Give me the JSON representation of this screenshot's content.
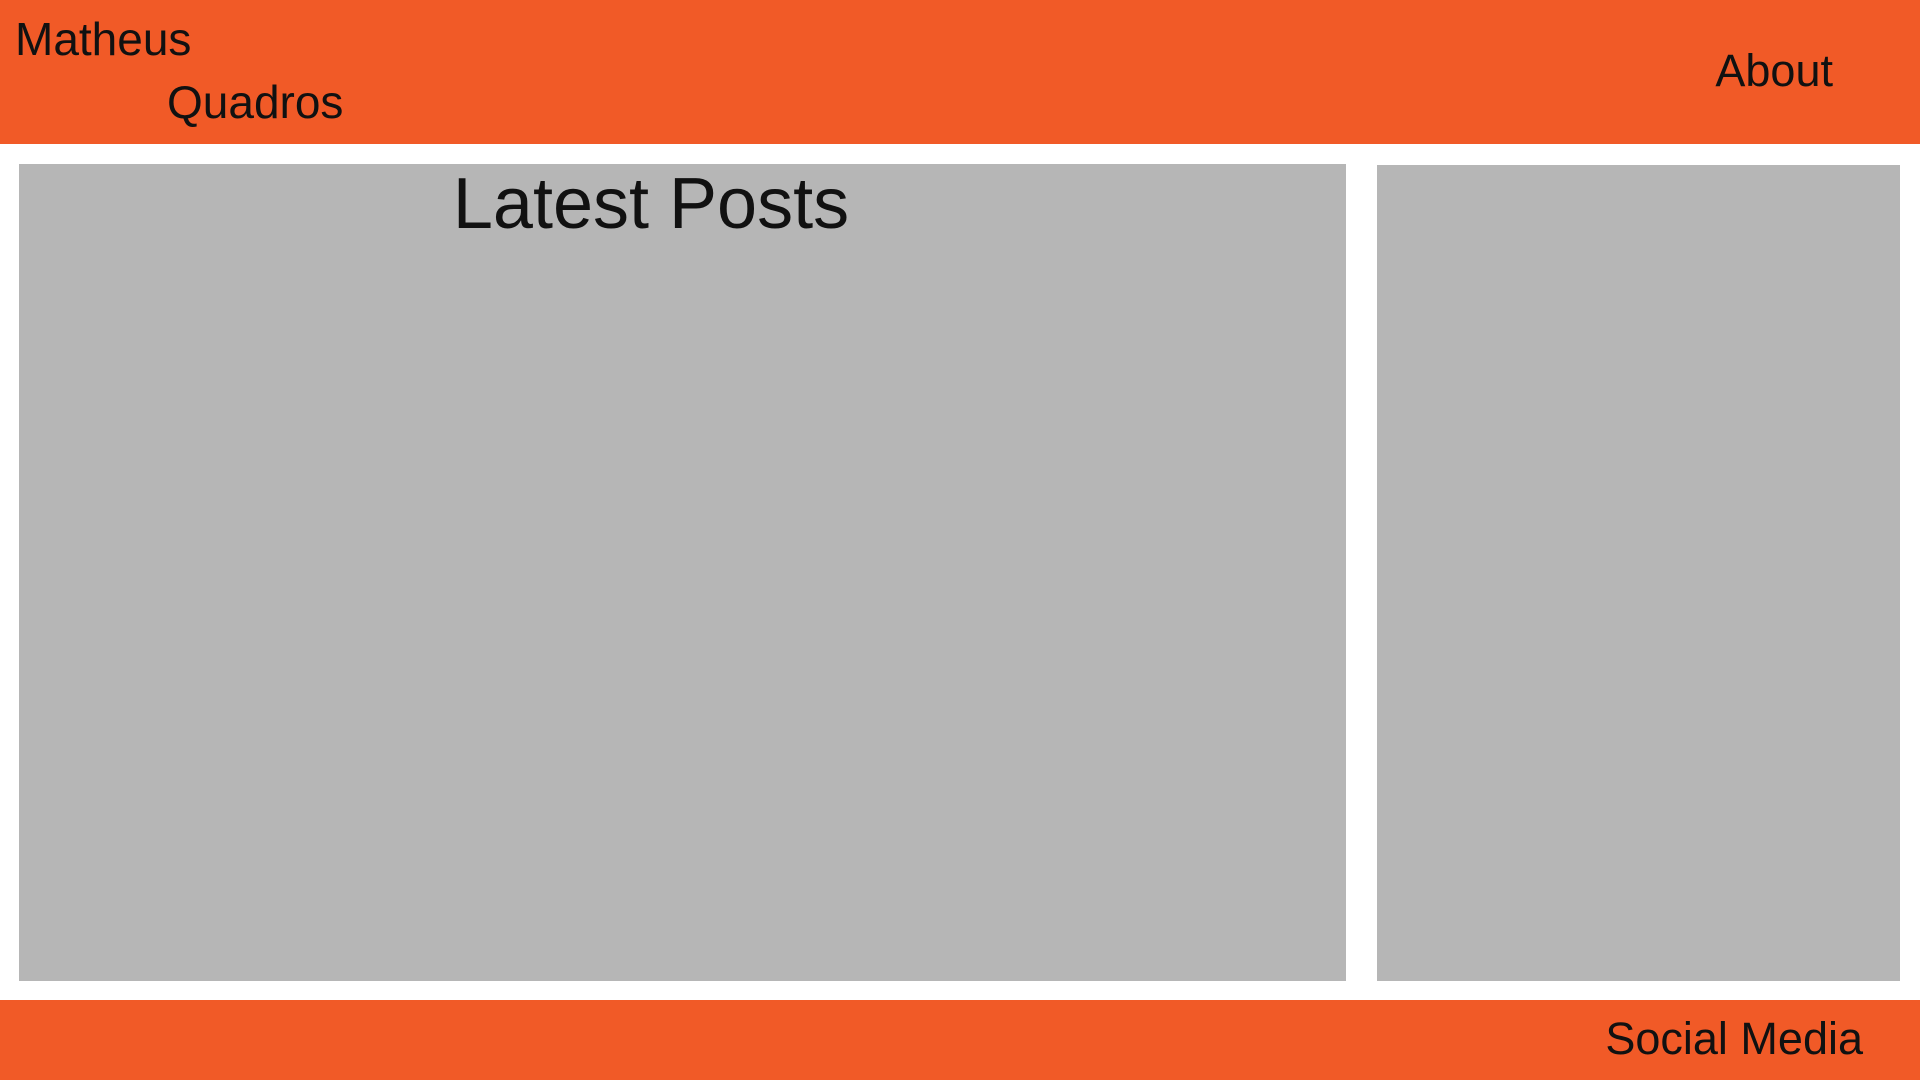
{
  "header": {
    "brand_first": "Matheus",
    "brand_last": "Quadros",
    "nav_about": "About"
  },
  "main": {
    "title": "Latest Posts"
  },
  "footer": {
    "social": "Social Media"
  },
  "colors": {
    "accent": "#f15a27",
    "panel": "#b6b6b6",
    "background": "#ffffff",
    "text": "#111111"
  }
}
